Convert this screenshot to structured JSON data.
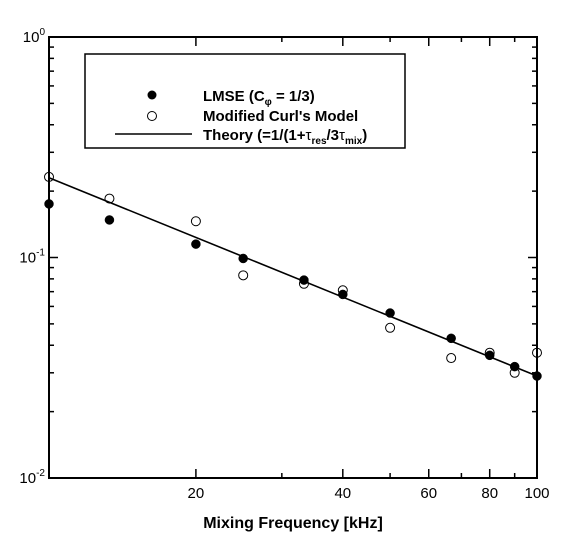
{
  "chart_data": {
    "type": "scatter",
    "xlabel": "Mixing Frequency [kHz]",
    "ylabel": "",
    "xscale": "log",
    "yscale": "log",
    "xlim": [
      10,
      100
    ],
    "ylim": [
      0.01,
      1
    ],
    "x_ticks": [
      {
        "value": 20,
        "label": "20"
      },
      {
        "value": 40,
        "label": "40"
      },
      {
        "value": 60,
        "label": "60"
      },
      {
        "value": 80,
        "label": "80"
      },
      {
        "value": 100,
        "label": "100"
      }
    ],
    "y_ticks": [
      {
        "value": 0.01,
        "base": "10",
        "exp": "-2"
      },
      {
        "value": 0.1,
        "base": "10",
        "exp": "-1"
      },
      {
        "value": 1,
        "base": "10",
        "exp": "0"
      }
    ],
    "grid": false,
    "legend_position": "top-center",
    "series": [
      {
        "name": "LMSE (C",
        "name_sub": "φ",
        "name_tail": " = 1/3)",
        "marker": "filled-circle",
        "x": [
          10,
          13.3,
          20,
          25,
          33.3,
          40,
          50,
          66.7,
          80,
          90,
          100
        ],
        "y": [
          0.175,
          0.148,
          0.115,
          0.099,
          0.079,
          0.068,
          0.056,
          0.043,
          0.036,
          0.032,
          0.029
        ]
      },
      {
        "name": "Modified Curl's Model",
        "marker": "open-circle",
        "x": [
          10,
          13.3,
          20,
          25,
          33.3,
          40,
          50,
          66.7,
          80,
          90,
          100
        ],
        "y": [
          0.232,
          0.185,
          0.146,
          0.083,
          0.076,
          0.071,
          0.048,
          0.035,
          0.037,
          0.03,
          0.037
        ]
      },
      {
        "name_parts": [
          "Theory (=1/(1+",
          "τ",
          "res",
          "/3",
          "τ",
          "mix",
          ")"
        ],
        "marker": "line",
        "x": [
          10,
          100
        ],
        "y": [
          0.23,
          0.029
        ]
      }
    ]
  }
}
